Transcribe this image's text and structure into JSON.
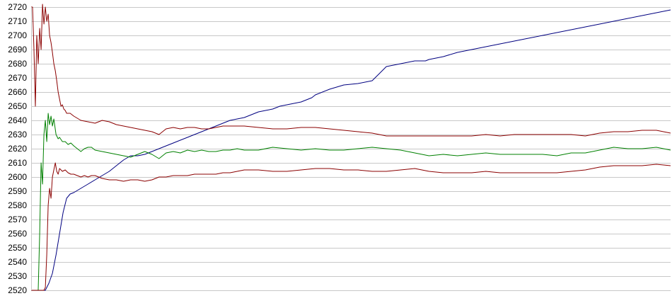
{
  "chart_data": {
    "type": "line",
    "title": "",
    "xlabel": "",
    "ylabel": "",
    "ylim": [
      2520,
      2720
    ],
    "yticks": [
      2520,
      2530,
      2540,
      2550,
      2560,
      2570,
      2580,
      2590,
      2600,
      2610,
      2620,
      2630,
      2640,
      2650,
      2660,
      2670,
      2680,
      2690,
      2700,
      2710,
      2720
    ],
    "xlim": [
      0,
      900
    ],
    "grid": true,
    "legend": "none",
    "series": [
      {
        "color": "#000080",
        "x": [
          0,
          20,
          25,
          30,
          35,
          40,
          45,
          50,
          55,
          60,
          70,
          80,
          90,
          100,
          110,
          120,
          130,
          140,
          150,
          160,
          170,
          180,
          190,
          200,
          210,
          220,
          230,
          240,
          250,
          260,
          270,
          280,
          290,
          300,
          310,
          320,
          330,
          340,
          350,
          360,
          370,
          380,
          390,
          395,
          400,
          420,
          440,
          460,
          480,
          490,
          500,
          520,
          540,
          545,
          550,
          555,
          560,
          580,
          600,
          620,
          640,
          660,
          680,
          700,
          720,
          740,
          760,
          780,
          800,
          820,
          840,
          860,
          880,
          900
        ],
        "y": [
          2520,
          2520,
          2525,
          2532,
          2545,
          2560,
          2575,
          2585,
          2588,
          2589,
          2592,
          2595,
          2598,
          2601,
          2604,
          2608,
          2612,
          2615,
          2615,
          2616,
          2618,
          2620,
          2622,
          2624,
          2626,
          2628,
          2630,
          2632,
          2634,
          2636,
          2638,
          2640,
          2641,
          2642,
          2644,
          2646,
          2647,
          2648,
          2650,
          2651,
          2652,
          2653,
          2655,
          2656,
          2658,
          2662,
          2665,
          2666,
          2668,
          2673,
          2678,
          2680,
          2682,
          2682,
          2682,
          2682,
          2683,
          2685,
          2688,
          2690,
          2692,
          2694,
          2696,
          2698,
          2700,
          2702,
          2704,
          2706,
          2708,
          2710,
          2712,
          2714,
          2716,
          2718
        ]
      },
      {
        "color": "#008000",
        "x": [
          0,
          10,
          12,
          14,
          16,
          18,
          20,
          22,
          24,
          26,
          28,
          30,
          32,
          35,
          38,
          40,
          44,
          48,
          52,
          56,
          60,
          65,
          70,
          75,
          80,
          85,
          90,
          100,
          110,
          120,
          130,
          140,
          150,
          160,
          170,
          180,
          190,
          200,
          210,
          220,
          230,
          240,
          250,
          260,
          270,
          280,
          290,
          300,
          320,
          340,
          360,
          380,
          400,
          420,
          440,
          460,
          480,
          500,
          520,
          540,
          560,
          580,
          600,
          620,
          640,
          660,
          680,
          700,
          720,
          740,
          760,
          780,
          800,
          820,
          840,
          860,
          880,
          900
        ],
        "y": [
          2520,
          2520,
          2560,
          2610,
          2595,
          2630,
          2640,
          2625,
          2645,
          2637,
          2643,
          2636,
          2641,
          2630,
          2627,
          2628,
          2625,
          2625,
          2623,
          2624,
          2622,
          2620,
          2618,
          2620,
          2621,
          2621,
          2619,
          2618,
          2617,
          2616,
          2615,
          2614,
          2616,
          2618,
          2616,
          2613,
          2617,
          2618,
          2617,
          2619,
          2618,
          2619,
          2618,
          2618,
          2619,
          2619,
          2620,
          2619,
          2619,
          2621,
          2620,
          2619,
          2620,
          2619,
          2619,
          2620,
          2621,
          2620,
          2619,
          2617,
          2615,
          2616,
          2615,
          2616,
          2617,
          2616,
          2616,
          2616,
          2616,
          2615,
          2617,
          2617,
          2619,
          2621,
          2620,
          2620,
          2621,
          2619
        ]
      },
      {
        "color": "#8b0000",
        "x": [
          0,
          2,
          4,
          6,
          8,
          10,
          12,
          14,
          16,
          18,
          20,
          22,
          24,
          26,
          28,
          30,
          32,
          34,
          36,
          38,
          40,
          42,
          44,
          46,
          48,
          50,
          55,
          60,
          70,
          80,
          90,
          100,
          110,
          120,
          130,
          140,
          150,
          160,
          170,
          180,
          190,
          200,
          210,
          220,
          230,
          240,
          250,
          260,
          270,
          280,
          290,
          300,
          320,
          340,
          360,
          380,
          400,
          420,
          440,
          460,
          480,
          500,
          520,
          540,
          560,
          580,
          600,
          620,
          640,
          660,
          680,
          700,
          720,
          740,
          760,
          780,
          800,
          820,
          840,
          860,
          880,
          900
        ],
        "y": [
          2720,
          2720,
          2690,
          2650,
          2700,
          2680,
          2705,
          2690,
          2722,
          2708,
          2720,
          2710,
          2715,
          2700,
          2695,
          2688,
          2680,
          2675,
          2668,
          2660,
          2655,
          2650,
          2651,
          2648,
          2647,
          2645,
          2645,
          2643,
          2640,
          2639,
          2638,
          2640,
          2639,
          2637,
          2636,
          2635,
          2634,
          2633,
          2632,
          2630,
          2634,
          2635,
          2634,
          2635,
          2635,
          2634,
          2634,
          2635,
          2636,
          2636,
          2636,
          2636,
          2635,
          2634,
          2634,
          2635,
          2635,
          2634,
          2633,
          2632,
          2631,
          2629,
          2629,
          2629,
          2629,
          2629,
          2629,
          2629,
          2630,
          2629,
          2630,
          2630,
          2630,
          2630,
          2630,
          2629,
          2631,
          2632,
          2632,
          2633,
          2633,
          2631
        ]
      },
      {
        "color": "#8b0000",
        "x": [
          0,
          18,
          20,
          22,
          24,
          26,
          28,
          30,
          32,
          34,
          36,
          38,
          40,
          44,
          48,
          52,
          56,
          60,
          65,
          70,
          75,
          80,
          85,
          90,
          100,
          110,
          120,
          130,
          140,
          150,
          160,
          170,
          180,
          190,
          200,
          210,
          220,
          230,
          240,
          250,
          260,
          270,
          280,
          290,
          300,
          320,
          340,
          360,
          380,
          400,
          420,
          440,
          460,
          480,
          500,
          520,
          540,
          560,
          580,
          600,
          620,
          640,
          660,
          680,
          700,
          720,
          740,
          760,
          780,
          800,
          820,
          840,
          860,
          880,
          900
        ],
        "y": [
          2520,
          2520,
          2522,
          2545,
          2580,
          2592,
          2585,
          2600,
          2605,
          2610,
          2604,
          2602,
          2606,
          2604,
          2605,
          2603,
          2602,
          2602,
          2601,
          2600,
          2601,
          2600,
          2601,
          2601,
          2599,
          2598,
          2598,
          2597,
          2598,
          2598,
          2597,
          2598,
          2600,
          2600,
          2601,
          2601,
          2601,
          2602,
          2602,
          2602,
          2602,
          2603,
          2603,
          2604,
          2605,
          2605,
          2604,
          2604,
          2605,
          2606,
          2606,
          2605,
          2605,
          2604,
          2604,
          2605,
          2606,
          2604,
          2603,
          2603,
          2603,
          2604,
          2603,
          2603,
          2603,
          2603,
          2603,
          2604,
          2605,
          2607,
          2608,
          2608,
          2608,
          2609,
          2608
        ]
      }
    ]
  }
}
